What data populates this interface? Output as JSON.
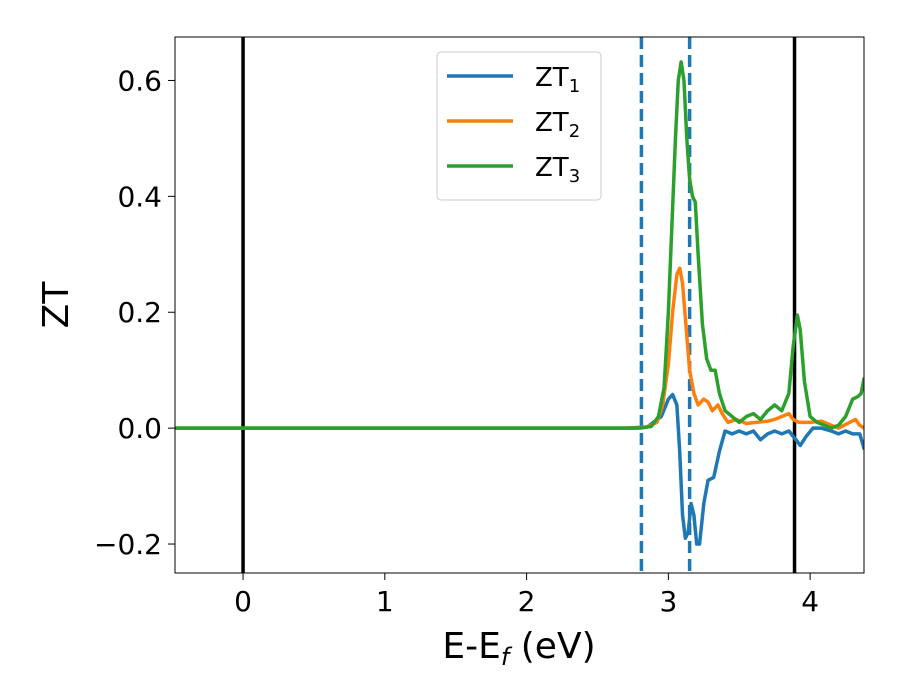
{
  "chart_data": {
    "type": "line",
    "xlabel": {
      "main": "E-E",
      "sub": "f",
      "unit": " (eV)"
    },
    "ylabel": "ZT",
    "xlim": [
      -0.48,
      4.38
    ],
    "ylim": [
      -0.25,
      0.675
    ],
    "x_ticks": [
      0,
      1,
      2,
      3,
      4
    ],
    "x_tick_labels": [
      "0",
      "1",
      "2",
      "3",
      "4"
    ],
    "y_ticks": [
      -0.2,
      0.0,
      0.2,
      0.4,
      0.6
    ],
    "y_tick_labels": [
      "−0.2",
      "0.0",
      "0.2",
      "0.4",
      "0.6"
    ],
    "grid": false,
    "legend_position": "top-center",
    "vlines": [
      {
        "x": 0.0,
        "style": "solid",
        "color": "#000000"
      },
      {
        "x": 3.89,
        "style": "solid",
        "color": "#000000"
      },
      {
        "x": 2.81,
        "style": "dashed",
        "color": "#1f77b4"
      },
      {
        "x": 3.15,
        "style": "dashed",
        "color": "#1f77b4"
      }
    ],
    "series": [
      {
        "name": "ZT",
        "sub": "1",
        "color": "#1f77b4",
        "points": [
          [
            -0.48,
            0
          ],
          [
            2.7,
            0
          ],
          [
            2.85,
            0.002
          ],
          [
            2.95,
            0.02
          ],
          [
            3.0,
            0.05
          ],
          [
            3.03,
            0.058
          ],
          [
            3.06,
            0.04
          ],
          [
            3.08,
            -0.04
          ],
          [
            3.1,
            -0.15
          ],
          [
            3.12,
            -0.19
          ],
          [
            3.14,
            -0.18
          ],
          [
            3.16,
            -0.13
          ],
          [
            3.18,
            -0.15
          ],
          [
            3.2,
            -0.2
          ],
          [
            3.22,
            -0.2
          ],
          [
            3.25,
            -0.13
          ],
          [
            3.28,
            -0.09
          ],
          [
            3.32,
            -0.085
          ],
          [
            3.36,
            -0.04
          ],
          [
            3.4,
            -0.005
          ],
          [
            3.45,
            -0.01
          ],
          [
            3.5,
            -0.005
          ],
          [
            3.55,
            -0.01
          ],
          [
            3.6,
            -0.005
          ],
          [
            3.65,
            -0.02
          ],
          [
            3.7,
            -0.01
          ],
          [
            3.75,
            -0.005
          ],
          [
            3.8,
            -0.01
          ],
          [
            3.85,
            -0.005
          ],
          [
            3.9,
            -0.02
          ],
          [
            3.93,
            -0.03
          ],
          [
            3.97,
            -0.015
          ],
          [
            4.02,
            0.0
          ],
          [
            4.08,
            0.0
          ],
          [
            4.15,
            -0.005
          ],
          [
            4.2,
            -0.01
          ],
          [
            4.25,
            -0.005
          ],
          [
            4.3,
            -0.01
          ],
          [
            4.35,
            -0.01
          ],
          [
            4.38,
            -0.035
          ]
        ]
      },
      {
        "name": "ZT",
        "sub": "2",
        "color": "#ff7f0e",
        "points": [
          [
            -0.48,
            0
          ],
          [
            2.75,
            0
          ],
          [
            2.85,
            0.002
          ],
          [
            2.92,
            0.01
          ],
          [
            2.96,
            0.04
          ],
          [
            3.0,
            0.11
          ],
          [
            3.03,
            0.2
          ],
          [
            3.06,
            0.265
          ],
          [
            3.08,
            0.276
          ],
          [
            3.1,
            0.25
          ],
          [
            3.12,
            0.19
          ],
          [
            3.15,
            0.1
          ],
          [
            3.18,
            0.06
          ],
          [
            3.21,
            0.04
          ],
          [
            3.25,
            0.05
          ],
          [
            3.28,
            0.045
          ],
          [
            3.31,
            0.03
          ],
          [
            3.35,
            0.04
          ],
          [
            3.38,
            0.025
          ],
          [
            3.42,
            0.01
          ],
          [
            3.48,
            0.015
          ],
          [
            3.55,
            0.008
          ],
          [
            3.62,
            0.01
          ],
          [
            3.7,
            0.012
          ],
          [
            3.75,
            0.015
          ],
          [
            3.8,
            0.02
          ],
          [
            3.85,
            0.025
          ],
          [
            3.88,
            0.015
          ],
          [
            3.92,
            0.01
          ],
          [
            4.0,
            0.01
          ],
          [
            4.08,
            0.012
          ],
          [
            4.15,
            0.005
          ],
          [
            4.2,
            0.0
          ],
          [
            4.28,
            0.01
          ],
          [
            4.32,
            0.015
          ],
          [
            4.35,
            0.005
          ],
          [
            4.38,
            0.0
          ]
        ]
      },
      {
        "name": "ZT",
        "sub": "3",
        "color": "#2ca02c",
        "points": [
          [
            -0.48,
            0
          ],
          [
            2.8,
            0
          ],
          [
            2.88,
            0.003
          ],
          [
            2.93,
            0.02
          ],
          [
            2.97,
            0.07
          ],
          [
            3.0,
            0.2
          ],
          [
            3.03,
            0.38
          ],
          [
            3.05,
            0.5
          ],
          [
            3.07,
            0.6
          ],
          [
            3.09,
            0.632
          ],
          [
            3.11,
            0.6
          ],
          [
            3.13,
            0.5
          ],
          [
            3.15,
            0.43
          ],
          [
            3.17,
            0.4
          ],
          [
            3.19,
            0.39
          ],
          [
            3.21,
            0.3
          ],
          [
            3.24,
            0.18
          ],
          [
            3.27,
            0.12
          ],
          [
            3.3,
            0.1
          ],
          [
            3.33,
            0.1
          ],
          [
            3.36,
            0.06
          ],
          [
            3.4,
            0.03
          ],
          [
            3.45,
            0.02
          ],
          [
            3.5,
            0.01
          ],
          [
            3.55,
            0.02
          ],
          [
            3.6,
            0.025
          ],
          [
            3.65,
            0.015
          ],
          [
            3.7,
            0.03
          ],
          [
            3.75,
            0.04
          ],
          [
            3.8,
            0.03
          ],
          [
            3.85,
            0.06
          ],
          [
            3.88,
            0.14
          ],
          [
            3.91,
            0.195
          ],
          [
            3.93,
            0.17
          ],
          [
            3.96,
            0.08
          ],
          [
            4.0,
            0.02
          ],
          [
            4.05,
            0.01
          ],
          [
            4.1,
            0.005
          ],
          [
            4.15,
            0.0
          ],
          [
            4.2,
            0.005
          ],
          [
            4.25,
            0.02
          ],
          [
            4.3,
            0.05
          ],
          [
            4.34,
            0.055
          ],
          [
            4.36,
            0.06
          ],
          [
            4.38,
            0.085
          ]
        ]
      }
    ]
  }
}
